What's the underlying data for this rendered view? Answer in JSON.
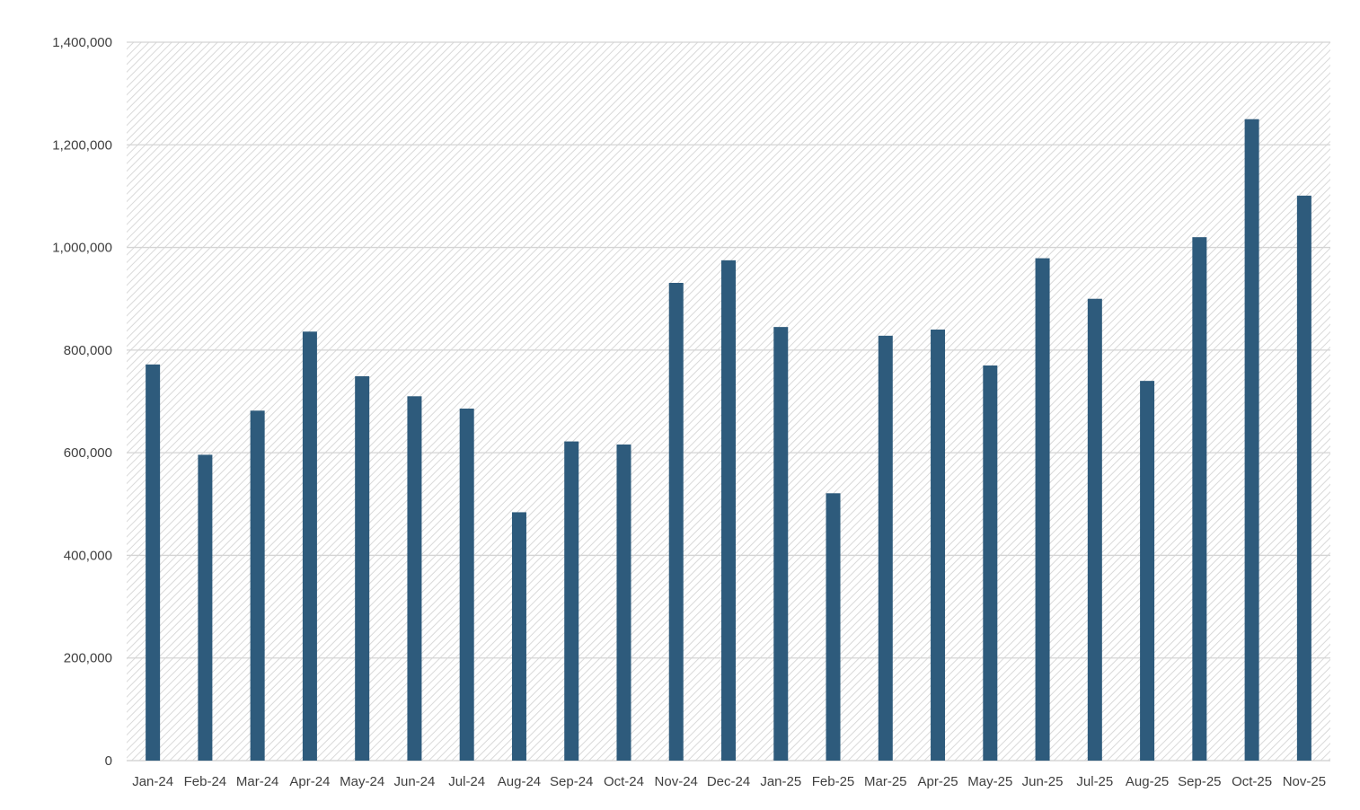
{
  "chart_data": {
    "type": "bar",
    "title": "",
    "xlabel": "",
    "ylabel": "",
    "categories": [
      "Jan-24",
      "Feb-24",
      "Mar-24",
      "Apr-24",
      "May-24",
      "Jun-24",
      "Jul-24",
      "Aug-24",
      "Sep-24",
      "Oct-24",
      "Nov-24",
      "Dec-24",
      "Jan-25",
      "Feb-25",
      "Mar-25",
      "Apr-25",
      "May-25",
      "Jun-25",
      "Jul-25",
      "Aug-25",
      "Sep-25",
      "Oct-25",
      "Nov-25"
    ],
    "values": [
      772000,
      596000,
      682000,
      836000,
      749000,
      710000,
      686000,
      484000,
      622000,
      616000,
      931000,
      975000,
      845000,
      521000,
      828000,
      840000,
      770000,
      979000,
      900000,
      740000,
      1020000,
      1250000,
      1101000
    ],
    "ylim": [
      0,
      1400000
    ],
    "yticks": [
      0,
      200000,
      400000,
      600000,
      800000,
      1000000,
      1200000,
      1400000
    ],
    "ytick_labels": [
      "0",
      "200,000",
      "400,000",
      "600,000",
      "800,000",
      "1,000,000",
      "1,200,000",
      "1,400,000"
    ],
    "grid": true,
    "legend": "none",
    "colors": {
      "bar": "#2e5b7c",
      "grid": "#d4d4d4",
      "hatch": "#d9d9d9",
      "axis_text": "#404040"
    }
  }
}
